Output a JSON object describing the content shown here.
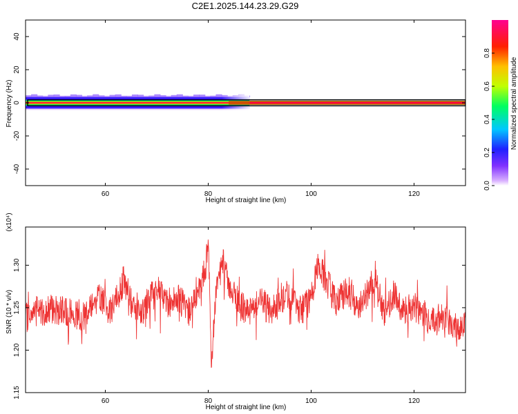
{
  "title": "C2E1.2025.144.23.29.G29",
  "chart_data": [
    {
      "type": "heatmap",
      "title": "C2E1.2025.144.23.29.G29",
      "xlabel": "Height of straight line (km)",
      "ylabel": "Frequency (Hz)",
      "xlim": [
        44.5,
        130
      ],
      "ylim": [
        -50,
        50
      ],
      "xticks": [
        60,
        80,
        100,
        120
      ],
      "yticks": [
        -40,
        -20,
        0,
        20,
        40
      ],
      "ytick_labels": [
        "-40",
        "-20",
        "0",
        "20",
        "40"
      ],
      "colorbar": {
        "label": "Normalized spectral amplitude",
        "range": [
          0,
          1
        ],
        "ticks": [
          0.0,
          0.2,
          0.4,
          0.6,
          0.8
        ],
        "tick_labels": [
          "0.0",
          "0.2",
          "0.4",
          "0.6",
          "0.8"
        ],
        "colors": [
          "#ffffff",
          "#c080ff",
          "#4000ff",
          "#00c0ff",
          "#00ff80",
          "#c0ff00",
          "#ffc000",
          "#ff0000",
          "#ff0080"
        ]
      },
      "signal": {
        "center_frequency_hz": 0,
        "core_halfwidth_hz": 0.8,
        "spread_halfwidth_hz": 3.5,
        "spread_end_km": 88,
        "box_halfwidth_hz": 1.8
      }
    },
    {
      "type": "line",
      "xlabel": "Height of straight line (km)",
      "ylabel": "SNR (10 * v/v)",
      "y_multiplier": "(x10⁴)",
      "xlim": [
        44.5,
        130
      ],
      "ylim": [
        1.15,
        1.345
      ],
      "xticks": [
        60,
        80,
        100,
        120
      ],
      "yticks": [
        1.15,
        1.2,
        1.25,
        1.3
      ],
      "ytick_labels": [
        "1.15",
        "1.20",
        "1.25",
        "1.30"
      ],
      "color": "#ee3333",
      "series": [
        {
          "x": [
            44.5,
            46,
            48,
            50,
            52,
            54,
            55.5,
            57,
            59,
            61,
            62.5,
            63.5,
            65,
            67,
            69,
            71,
            72,
            74,
            76,
            78,
            79.5,
            80,
            80.6,
            81.5,
            83,
            84,
            86,
            88,
            90,
            92,
            94,
            96,
            98,
            100,
            101.5,
            103,
            105,
            107,
            109,
            111,
            112.5,
            114,
            116,
            118,
            120,
            122,
            124,
            126,
            128,
            130
          ],
          "y": [
            1.236,
            1.247,
            1.244,
            1.249,
            1.245,
            1.243,
            1.238,
            1.254,
            1.262,
            1.246,
            1.262,
            1.282,
            1.257,
            1.245,
            1.264,
            1.266,
            1.255,
            1.262,
            1.247,
            1.266,
            1.298,
            1.335,
            1.18,
            1.272,
            1.305,
            1.278,
            1.254,
            1.243,
            1.261,
            1.245,
            1.261,
            1.266,
            1.245,
            1.261,
            1.302,
            1.281,
            1.255,
            1.271,
            1.252,
            1.268,
            1.289,
            1.241,
            1.265,
            1.247,
            1.252,
            1.241,
            1.236,
            1.241,
            1.226,
            1.234
          ],
          "noise_amplitude": 0.018
        }
      ]
    }
  ]
}
